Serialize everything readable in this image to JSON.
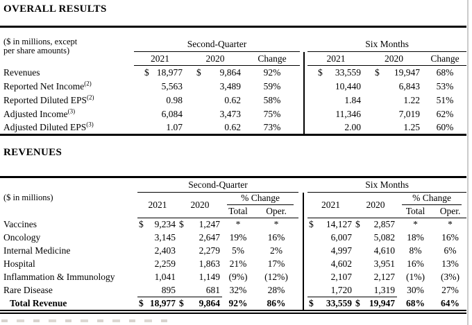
{
  "overall": {
    "heading": "OVERALL RESULTS",
    "unit_note": [
      "($ in millions, except",
      "per share amounts)"
    ],
    "group_headers": [
      "Second-Quarter",
      "Six Months"
    ],
    "column_headers": [
      "2021",
      "2020",
      "Change"
    ],
    "currency_symbol": "$",
    "rows": [
      {
        "label": "Revenues",
        "sup": "",
        "dollar": true,
        "bold": false,
        "cells": [
          "18,977",
          "9,864",
          "92%",
          "33,559",
          "19,947",
          "68%"
        ]
      },
      {
        "label": "Reported Net Income",
        "sup": "(2)",
        "dollar": false,
        "bold": false,
        "cells": [
          "5,563",
          "3,489",
          "59%",
          "10,440",
          "6,843",
          "53%"
        ]
      },
      {
        "label": "Reported Diluted EPS",
        "sup": "(2)",
        "dollar": false,
        "bold": false,
        "cells": [
          "0.98",
          "0.62",
          "58%",
          "1.84",
          "1.22",
          "51%"
        ]
      },
      {
        "label": "Adjusted Income",
        "sup": "(3)",
        "dollar": false,
        "bold": false,
        "cells": [
          "6,084",
          "3,473",
          "75%",
          "11,346",
          "7,019",
          "62%"
        ]
      },
      {
        "label": "Adjusted Diluted EPS",
        "sup": "(3)",
        "dollar": false,
        "bold": false,
        "cells": [
          "1.07",
          "0.62",
          "73%",
          "2.00",
          "1.25",
          "60%"
        ]
      }
    ]
  },
  "revenues": {
    "heading": "REVENUES",
    "unit_note": "($ in millions)",
    "group_headers": [
      "Second-Quarter",
      "Six Months"
    ],
    "year_headers": [
      "2021",
      "2020"
    ],
    "pct_change_header": "% Change",
    "pct_subheaders": [
      "Total",
      "Oper."
    ],
    "currency_symbol": "$",
    "rows": [
      {
        "label": "Vaccines",
        "sup": "",
        "dollar": true,
        "bold": false,
        "rule_above": false,
        "cells": [
          "9,234",
          "1,247",
          "*",
          "*",
          "14,127",
          "2,857",
          "*",
          "*"
        ]
      },
      {
        "label": "Oncology",
        "sup": "",
        "dollar": false,
        "bold": false,
        "rule_above": false,
        "cells": [
          "3,145",
          "2,647",
          "19%",
          "16%",
          "6,007",
          "5,082",
          "18%",
          "16%"
        ]
      },
      {
        "label": "Internal Medicine",
        "sup": "",
        "dollar": false,
        "bold": false,
        "rule_above": false,
        "cells": [
          "2,403",
          "2,279",
          "5%",
          "2%",
          "4,997",
          "4,610",
          "8%",
          "6%"
        ]
      },
      {
        "label": "Hospital",
        "sup": "",
        "dollar": false,
        "bold": false,
        "rule_above": false,
        "cells": [
          "2,259",
          "1,863",
          "21%",
          "17%",
          "4,602",
          "3,951",
          "16%",
          "13%"
        ]
      },
      {
        "label": "Inflammation & Immunology",
        "sup": "",
        "dollar": false,
        "bold": false,
        "rule_above": false,
        "cells": [
          "1,041",
          "1,149",
          "(9%)",
          "(12%)",
          "2,107",
          "2,127",
          "(1%)",
          "(3%)"
        ]
      },
      {
        "label": "Rare Disease",
        "sup": "",
        "dollar": false,
        "bold": false,
        "rule_above": false,
        "cells": [
          "895",
          "681",
          "32%",
          "28%",
          "1,720",
          "1,319",
          "30%",
          "27%"
        ]
      },
      {
        "label": "Total Revenue",
        "sup": "",
        "dollar": true,
        "bold": true,
        "rule_above": true,
        "cells": [
          "18,977",
          "9,864",
          "92%",
          "86%",
          "33,559",
          "19,947",
          "68%",
          "64%"
        ]
      }
    ]
  }
}
